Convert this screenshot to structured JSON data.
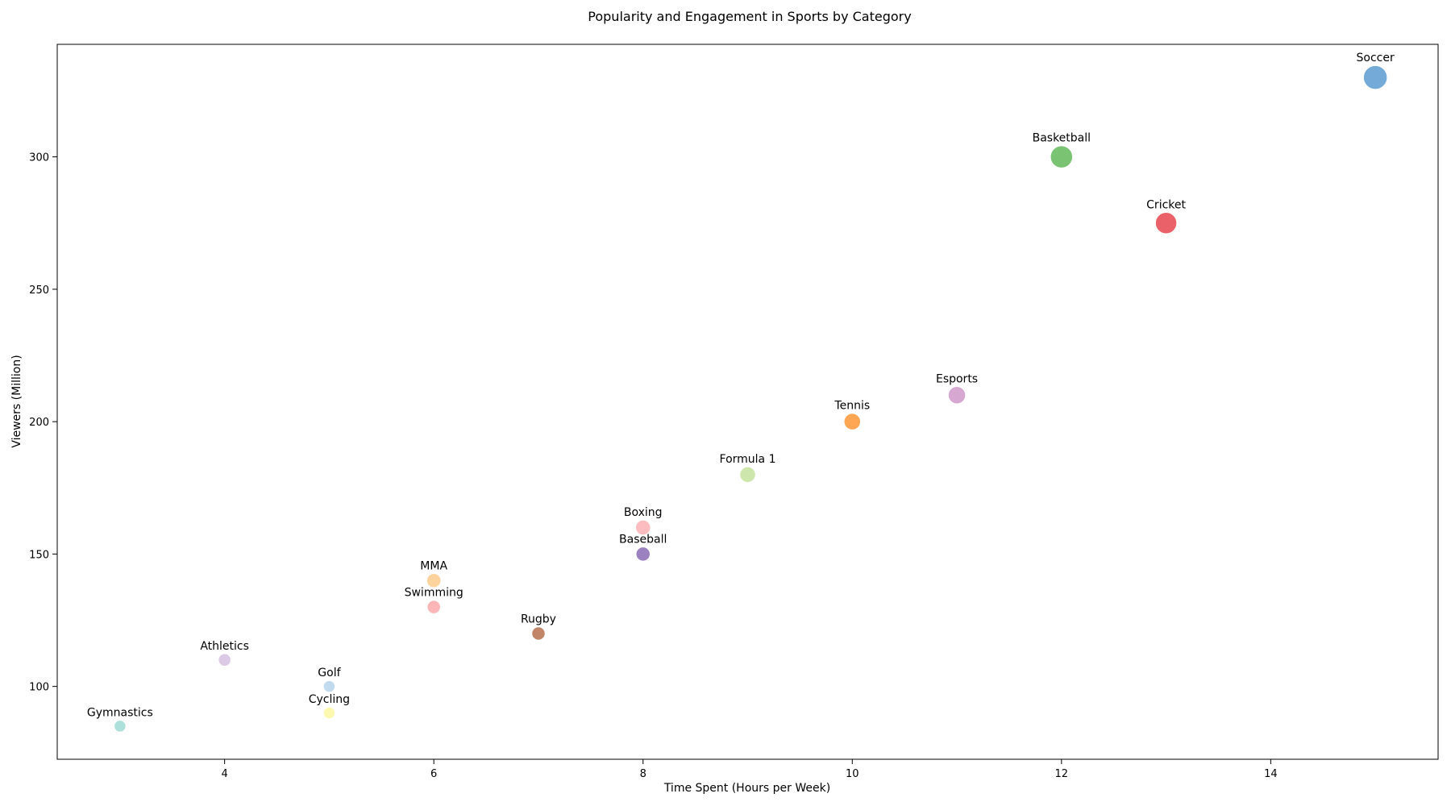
{
  "chart_data": {
    "type": "scatter",
    "title": "Popularity and Engagement in Sports by Category",
    "xlabel": "Time Spent (Hours per Week)",
    "ylabel": "Viewers (Million)",
    "xlim": [
      2.4,
      15.6
    ],
    "ylim": [
      72.5,
      342.5
    ],
    "x_ticks": [
      4,
      6,
      8,
      10,
      12,
      14
    ],
    "y_ticks": [
      100,
      150,
      200,
      250,
      300
    ],
    "grid": false,
    "points": [
      {
        "label": "Soccer",
        "x": 15,
        "y": 330,
        "size": 15,
        "color": "#5b9bd1"
      },
      {
        "label": "Basketball",
        "x": 12,
        "y": 300,
        "size": 14,
        "color": "#61b85a"
      },
      {
        "label": "Cricket",
        "x": 13,
        "y": 275,
        "size": 13.5,
        "color": "#e8454f"
      },
      {
        "label": "Esports",
        "x": 11,
        "y": 210,
        "size": 11,
        "color": "#cf98c8"
      },
      {
        "label": "Tennis",
        "x": 10,
        "y": 200,
        "size": 10.5,
        "color": "#fe9635"
      },
      {
        "label": "Formula 1",
        "x": 9,
        "y": 180,
        "size": 10,
        "color": "#c4e29e"
      },
      {
        "label": "Boxing",
        "x": 8,
        "y": 160,
        "size": 9.5,
        "color": "#fdb0b4"
      },
      {
        "label": "Baseball",
        "x": 8,
        "y": 150,
        "size": 9,
        "color": "#8a6bb5"
      },
      {
        "label": "MMA",
        "x": 6,
        "y": 140,
        "size": 9,
        "color": "#fdcb8c"
      },
      {
        "label": "Swimming",
        "x": 6,
        "y": 130,
        "size": 8.5,
        "color": "#fca9ab"
      },
      {
        "label": "Rugby",
        "x": 7,
        "y": 120,
        "size": 8.5,
        "color": "#b5714c"
      },
      {
        "label": "Athletics",
        "x": 4,
        "y": 110,
        "size": 8,
        "color": "#d6bfe0"
      },
      {
        "label": "Golf",
        "x": 5,
        "y": 100,
        "size": 7.5,
        "color": "#b6d4ea"
      },
      {
        "label": "Cycling",
        "x": 5,
        "y": 90,
        "size": 7.5,
        "color": "#fcf7a2"
      },
      {
        "label": "Gymnastics",
        "x": 3,
        "y": 85,
        "size": 7.5,
        "color": "#9fdbd4"
      }
    ]
  }
}
